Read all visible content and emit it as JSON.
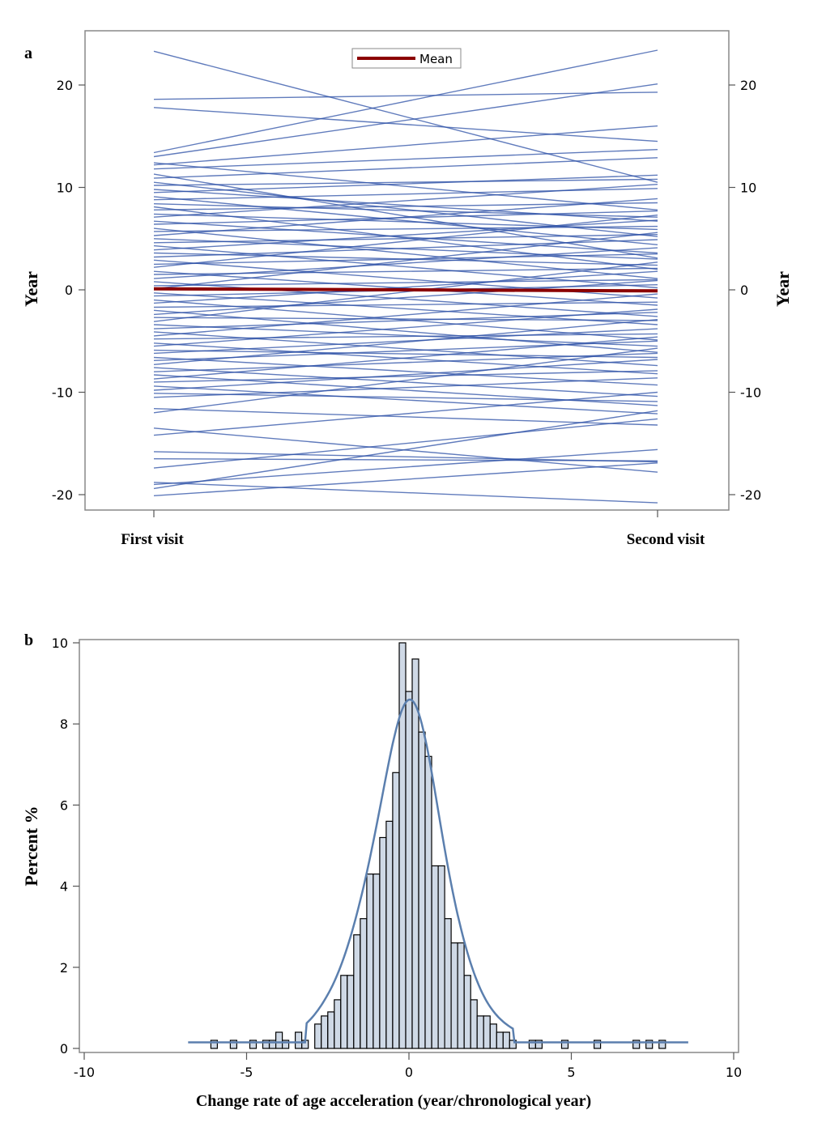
{
  "chart_data": [
    {
      "panel_label": "a",
      "type": "line",
      "ylabel": "Year",
      "ylabel_right": "Year",
      "categories": [
        "First visit",
        "Second visit"
      ],
      "ylim": [
        -21.5,
        24
      ],
      "yticks": [
        "20",
        "10",
        "0",
        "-10",
        "-20"
      ],
      "legend": {
        "label": "Mean",
        "placement": "top-center"
      },
      "colors": {
        "individual": "#2b4fa6",
        "mean": "#8b0000"
      },
      "mean": [
        0.1,
        -0.1
      ],
      "series": [
        {
          "values": [
            23.3,
            10.5
          ]
        },
        {
          "values": [
            18.6,
            19.3
          ]
        },
        {
          "values": [
            17.8,
            14.5
          ]
        },
        {
          "values": [
            13.4,
            23.4
          ]
        },
        {
          "values": [
            13.0,
            20.1
          ]
        },
        {
          "values": [
            12.4,
            7.8
          ]
        },
        {
          "values": [
            12.2,
            16.0
          ]
        },
        {
          "values": [
            11.8,
            13.7
          ]
        },
        {
          "values": [
            11.3,
            3.1
          ]
        },
        {
          "values": [
            10.9,
            12.9
          ]
        },
        {
          "values": [
            10.5,
            5.2
          ]
        },
        {
          "values": [
            10.2,
            10.8
          ]
        },
        {
          "values": [
            9.8,
            6.7
          ]
        },
        {
          "values": [
            9.5,
            11.2
          ]
        },
        {
          "values": [
            9.1,
            4.4
          ]
        },
        {
          "values": [
            8.8,
            9.9
          ]
        },
        {
          "values": [
            8.4,
            7.1
          ]
        },
        {
          "values": [
            8.1,
            2.0
          ]
        },
        {
          "values": [
            7.8,
            8.5
          ]
        },
        {
          "values": [
            7.4,
            5.9
          ]
        },
        {
          "values": [
            7.1,
            10.3
          ]
        },
        {
          "values": [
            6.7,
            3.6
          ]
        },
        {
          "values": [
            6.4,
            7.7
          ]
        },
        {
          "values": [
            6.0,
            1.1
          ]
        },
        {
          "values": [
            5.7,
            6.2
          ]
        },
        {
          "values": [
            5.3,
            8.9
          ]
        },
        {
          "values": [
            5.0,
            3.0
          ]
        },
        {
          "values": [
            4.6,
            5.4
          ]
        },
        {
          "values": [
            4.3,
            0.2
          ]
        },
        {
          "values": [
            3.9,
            6.8
          ]
        },
        {
          "values": [
            3.6,
            2.4
          ]
        },
        {
          "values": [
            3.2,
            4.9
          ]
        },
        {
          "values": [
            2.9,
            -0.8
          ]
        },
        {
          "values": [
            2.5,
            3.5
          ]
        },
        {
          "values": [
            2.2,
            7.3
          ]
        },
        {
          "values": [
            1.8,
            -1.5
          ]
        },
        {
          "values": [
            1.5,
            2.1
          ]
        },
        {
          "values": [
            1.1,
            4.1
          ]
        },
        {
          "values": [
            0.8,
            -2.6
          ]
        },
        {
          "values": [
            0.4,
            1.0
          ]
        },
        {
          "values": [
            0.1,
            5.6
          ]
        },
        {
          "values": [
            -0.3,
            -3.4
          ]
        },
        {
          "values": [
            -0.6,
            0.5
          ]
        },
        {
          "values": [
            -1.0,
            -4.9
          ]
        },
        {
          "values": [
            -1.3,
            1.8
          ]
        },
        {
          "values": [
            -1.7,
            -1.2
          ]
        },
        {
          "values": [
            -2.0,
            -6.1
          ]
        },
        {
          "values": [
            -2.4,
            0.9
          ]
        },
        {
          "values": [
            -2.7,
            -3.0
          ]
        },
        {
          "values": [
            -3.1,
            2.7
          ]
        },
        {
          "values": [
            -3.4,
            -5.5
          ]
        },
        {
          "values": [
            -3.8,
            -2.2
          ]
        },
        {
          "values": [
            -4.1,
            -7.4
          ]
        },
        {
          "values": [
            -4.5,
            -0.4
          ]
        },
        {
          "values": [
            -4.8,
            -4.3
          ]
        },
        {
          "values": [
            -5.2,
            -8.2
          ]
        },
        {
          "values": [
            -5.5,
            -1.9
          ]
        },
        {
          "values": [
            -5.9,
            -6.6
          ]
        },
        {
          "values": [
            -6.2,
            -3.8
          ]
        },
        {
          "values": [
            -6.6,
            -9.3
          ]
        },
        {
          "values": [
            -6.9,
            -5.0
          ]
        },
        {
          "values": [
            -7.3,
            -2.9
          ]
        },
        {
          "values": [
            -7.6,
            -10.4
          ]
        },
        {
          "values": [
            -8.0,
            -6.2
          ]
        },
        {
          "values": [
            -8.3,
            -11.3
          ]
        },
        {
          "values": [
            -8.7,
            -4.6
          ]
        },
        {
          "values": [
            -9.0,
            -7.9
          ]
        },
        {
          "values": [
            -9.4,
            -12.1
          ]
        },
        {
          "values": [
            -9.8,
            -6.8
          ]
        },
        {
          "values": [
            -10.1,
            -10.9
          ]
        },
        {
          "values": [
            -10.5,
            -8.6
          ]
        },
        {
          "values": [
            -11.6,
            -13.2
          ]
        },
        {
          "values": [
            -12.0,
            -5.7
          ]
        },
        {
          "values": [
            -14.2,
            -10.0
          ]
        },
        {
          "values": [
            -15.8,
            -16.8
          ]
        },
        {
          "values": [
            -17.4,
            -12.6
          ]
        },
        {
          "values": [
            -19.0,
            -15.6
          ]
        },
        {
          "values": [
            -19.4,
            -11.8
          ]
        },
        {
          "values": [
            -20.1,
            -16.9
          ]
        },
        {
          "values": [
            -18.8,
            -20.8
          ]
        },
        {
          "values": [
            -13.5,
            -17.8
          ]
        },
        {
          "values": [
            -16.5,
            -16.7
          ]
        }
      ]
    },
    {
      "panel_label": "b",
      "type": "bar",
      "xlabel": "Change rate of age acceleration (year/chronological year)",
      "ylabel": "Percent %",
      "xlim": [
        -10,
        10
      ],
      "ylim": [
        0,
        10
      ],
      "xticks": [
        "-10",
        "-5",
        "0",
        "5",
        "10"
      ],
      "yticks": [
        "0",
        "2",
        "4",
        "6",
        "8",
        "10"
      ],
      "bin_width": 0.2,
      "colors": {
        "bar_fill": "#cfd9e6",
        "bar_edge": "#000000",
        "density": "#5b7fae"
      },
      "bins": [
        {
          "x": -6.0,
          "value": 0.2
        },
        {
          "x": -5.4,
          "value": 0.2
        },
        {
          "x": -4.8,
          "value": 0.2
        },
        {
          "x": -4.4,
          "value": 0.2
        },
        {
          "x": -4.2,
          "value": 0.2
        },
        {
          "x": -4.0,
          "value": 0.4
        },
        {
          "x": -3.8,
          "value": 0.2
        },
        {
          "x": -3.4,
          "value": 0.4
        },
        {
          "x": -3.2,
          "value": 0.2
        },
        {
          "x": -2.8,
          "value": 0.6
        },
        {
          "x": -2.6,
          "value": 0.8
        },
        {
          "x": -2.4,
          "value": 0.9
        },
        {
          "x": -2.2,
          "value": 1.2
        },
        {
          "x": -2.0,
          "value": 1.8
        },
        {
          "x": -1.8,
          "value": 1.8
        },
        {
          "x": -1.6,
          "value": 2.8
        },
        {
          "x": -1.4,
          "value": 3.2
        },
        {
          "x": -1.2,
          "value": 4.3
        },
        {
          "x": -1.0,
          "value": 4.3
        },
        {
          "x": -0.8,
          "value": 5.2
        },
        {
          "x": -0.6,
          "value": 5.6
        },
        {
          "x": -0.4,
          "value": 6.8
        },
        {
          "x": -0.2,
          "value": 10.0
        },
        {
          "x": 0.0,
          "value": 8.8
        },
        {
          "x": 0.2,
          "value": 9.6
        },
        {
          "x": 0.4,
          "value": 7.8
        },
        {
          "x": 0.6,
          "value": 7.2
        },
        {
          "x": 0.8,
          "value": 4.5
        },
        {
          "x": 1.0,
          "value": 4.5
        },
        {
          "x": 1.2,
          "value": 3.2
        },
        {
          "x": 1.4,
          "value": 2.6
        },
        {
          "x": 1.6,
          "value": 2.6
        },
        {
          "x": 1.8,
          "value": 1.8
        },
        {
          "x": 2.0,
          "value": 1.2
        },
        {
          "x": 2.2,
          "value": 0.8
        },
        {
          "x": 2.4,
          "value": 0.8
        },
        {
          "x": 2.6,
          "value": 0.6
        },
        {
          "x": 2.8,
          "value": 0.4
        },
        {
          "x": 3.0,
          "value": 0.4
        },
        {
          "x": 3.2,
          "value": 0.2
        },
        {
          "x": 3.8,
          "value": 0.2
        },
        {
          "x": 4.0,
          "value": 0.2
        },
        {
          "x": 4.8,
          "value": 0.2
        },
        {
          "x": 5.8,
          "value": 0.2
        },
        {
          "x": 7.0,
          "value": 0.2
        },
        {
          "x": 7.4,
          "value": 0.2
        },
        {
          "x": 7.8,
          "value": 0.2
        }
      ]
    }
  ]
}
